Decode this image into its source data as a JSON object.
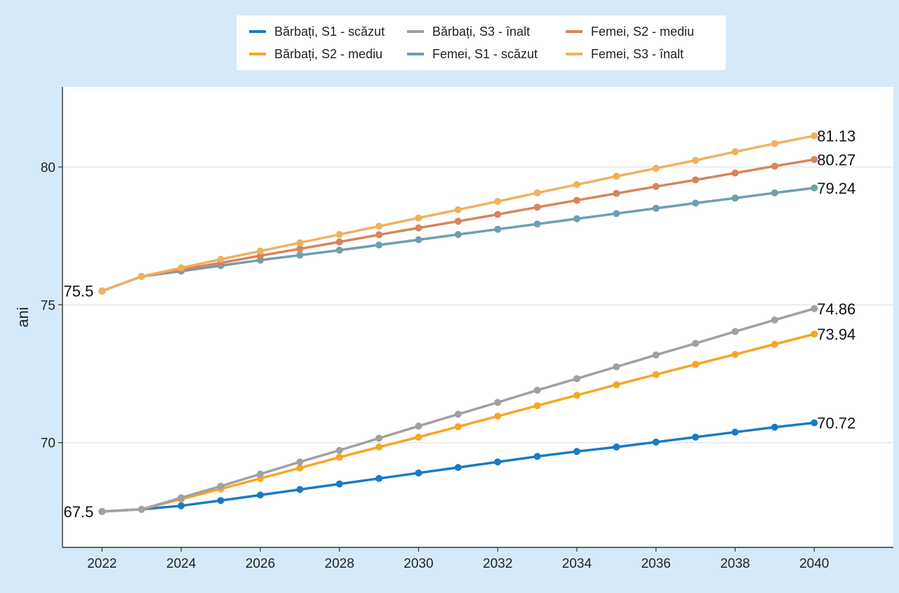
{
  "chart_data": {
    "type": "line",
    "ylabel": "ani",
    "xlabel": "",
    "x": [
      2022,
      2023,
      2024,
      2025,
      2026,
      2027,
      2028,
      2029,
      2030,
      2031,
      2032,
      2033,
      2034,
      2035,
      2036,
      2037,
      2038,
      2039,
      2040
    ],
    "xlim": [
      2021,
      2042
    ],
    "ylim": [
      66.2,
      82.9
    ],
    "x_ticks": [
      "2022",
      "2024",
      "2026",
      "2028",
      "2030",
      "2032",
      "2034",
      "2036",
      "2038",
      "2040"
    ],
    "y_ticks": [
      "70",
      "75",
      "80"
    ],
    "grid": "horizontal",
    "legend_position": "top",
    "series": [
      {
        "name": "Bărbați, S1 - scăzut",
        "color": "#1a7bc4",
        "values": [
          67.5,
          67.58,
          67.71,
          67.9,
          68.1,
          68.3,
          68.5,
          68.7,
          68.9,
          69.1,
          69.3,
          69.5,
          69.68,
          69.84,
          70.02,
          70.2,
          70.38,
          70.56,
          70.72
        ]
      },
      {
        "name": "Bărbați, S2 - mediu",
        "color": "#f5a623",
        "values": [
          67.5,
          67.58,
          67.95,
          68.32,
          68.7,
          69.08,
          69.47,
          69.84,
          70.2,
          70.58,
          70.96,
          71.34,
          71.72,
          72.1,
          72.47,
          72.84,
          73.2,
          73.57,
          73.94
        ]
      },
      {
        "name": "Bărbați, S3 - înalt",
        "color": "#a0a0a4",
        "values": [
          67.5,
          67.58,
          68.0,
          68.42,
          68.86,
          69.3,
          69.72,
          70.16,
          70.6,
          71.03,
          71.46,
          71.9,
          72.32,
          72.75,
          73.18,
          73.6,
          74.03,
          74.45,
          74.86
        ]
      },
      {
        "name": "Femei, S1 - scăzut",
        "color": "#6f9fae",
        "values": [
          75.5,
          76.03,
          76.22,
          76.42,
          76.62,
          76.8,
          76.98,
          77.17,
          77.36,
          77.55,
          77.74,
          77.93,
          78.12,
          78.31,
          78.5,
          78.69,
          78.87,
          79.06,
          79.24
        ]
      },
      {
        "name": "Femei, S2 - mediu",
        "color": "#d8845c",
        "values": [
          75.5,
          76.03,
          76.28,
          76.52,
          76.78,
          77.03,
          77.28,
          77.54,
          77.79,
          78.03,
          78.28,
          78.54,
          78.79,
          79.04,
          79.29,
          79.53,
          79.78,
          80.03,
          80.27
        ]
      },
      {
        "name": "Femei, S3 - înalt",
        "color": "#f0b060",
        "values": [
          75.5,
          76.03,
          76.34,
          76.65,
          76.95,
          77.25,
          77.55,
          77.85,
          78.15,
          78.45,
          78.75,
          79.06,
          79.36,
          79.66,
          79.95,
          80.24,
          80.55,
          80.85,
          81.13
        ]
      }
    ],
    "start_labels": [
      {
        "text": "75.5",
        "x": 2022,
        "y": 75.5
      },
      {
        "text": "67.5",
        "x": 2022,
        "y": 67.5
      }
    ],
    "end_labels": [
      {
        "text": "81.13",
        "x": 2040,
        "y": 81.13
      },
      {
        "text": "80.27",
        "x": 2040,
        "y": 80.27
      },
      {
        "text": "79.24",
        "x": 2040,
        "y": 79.24
      },
      {
        "text": "74.86",
        "x": 2040,
        "y": 74.86
      },
      {
        "text": "73.94",
        "x": 2040,
        "y": 73.94
      },
      {
        "text": "70.72",
        "x": 2040,
        "y": 70.72
      }
    ],
    "legend_order": [
      0,
      2,
      4,
      1,
      3,
      5
    ]
  }
}
